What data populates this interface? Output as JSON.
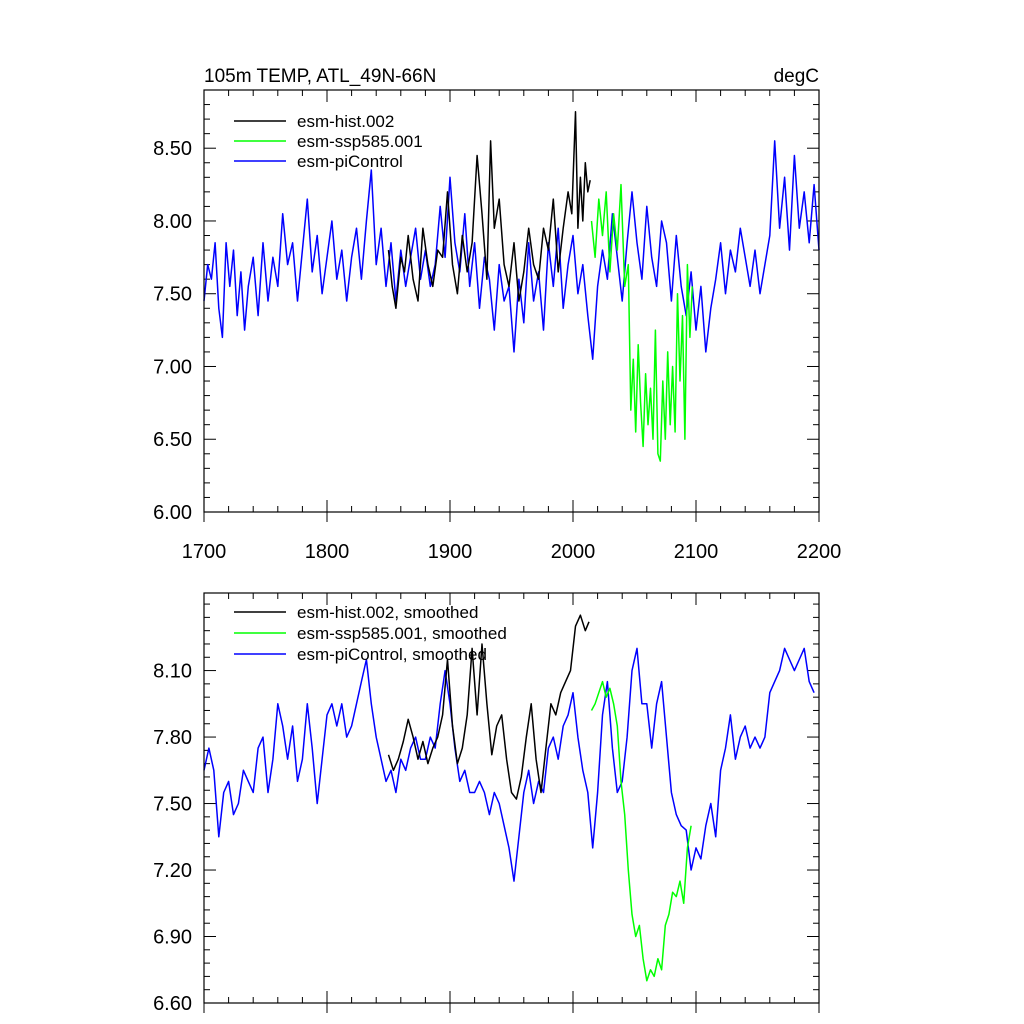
{
  "chart_data": [
    {
      "type": "line",
      "title": "105m TEMP, ATL_49N-66N",
      "units": "degC",
      "xlim": [
        1700,
        2200
      ],
      "ylim": [
        6.0,
        8.9
      ],
      "xticks": [
        1700,
        1800,
        1900,
        2000,
        2100,
        2200
      ],
      "xtick_labels": [
        "1700",
        "1800",
        "1900",
        "2000",
        "2100",
        "2200"
      ],
      "yticks": [
        6.0,
        6.5,
        7.0,
        7.5,
        8.0,
        8.5
      ],
      "ytick_labels": [
        "6.00",
        "6.50",
        "7.00",
        "7.50",
        "8.00",
        "8.50"
      ],
      "legend_position": "top-left",
      "series": [
        {
          "name": "esm-hist.002",
          "color": "#000000",
          "x": [
            1850,
            1853,
            1856,
            1860,
            1863,
            1866,
            1870,
            1874,
            1878,
            1882,
            1886,
            1890,
            1894,
            1898,
            1902,
            1906,
            1910,
            1914,
            1918,
            1922,
            1926,
            1930,
            1933,
            1936,
            1940,
            1944,
            1948,
            1952,
            1956,
            1960,
            1964,
            1968,
            1972,
            1976,
            1980,
            1984,
            1988,
            1992,
            1996,
            1999,
            2002,
            2004,
            2006,
            2008,
            2010,
            2012,
            2014
          ],
          "y": [
            7.8,
            7.55,
            7.4,
            7.75,
            7.65,
            7.9,
            7.6,
            7.45,
            7.95,
            7.7,
            7.55,
            7.8,
            7.75,
            8.2,
            7.7,
            7.5,
            7.9,
            7.65,
            7.85,
            8.45,
            8.05,
            7.6,
            8.55,
            7.95,
            8.15,
            7.7,
            7.55,
            7.85,
            7.45,
            7.65,
            7.95,
            7.7,
            7.6,
            7.95,
            7.8,
            8.15,
            7.65,
            7.95,
            8.2,
            8.05,
            8.75,
            7.95,
            8.3,
            8.0,
            8.4,
            8.2,
            8.28
          ]
        },
        {
          "name": "esm-ssp585.001",
          "color": "#00ff00",
          "x": [
            2015,
            2018,
            2021,
            2024,
            2027,
            2030,
            2033,
            2036,
            2039,
            2042,
            2045,
            2047,
            2049,
            2051,
            2053,
            2055,
            2057,
            2059,
            2061,
            2063,
            2065,
            2067,
            2069,
            2071,
            2073,
            2075,
            2077,
            2079,
            2081,
            2083,
            2085,
            2087,
            2089,
            2091,
            2093,
            2095,
            2097
          ],
          "y": [
            8.0,
            7.75,
            8.15,
            7.9,
            8.2,
            7.65,
            8.05,
            7.8,
            8.25,
            7.55,
            7.7,
            6.7,
            7.05,
            6.55,
            7.15,
            6.75,
            6.45,
            6.95,
            6.6,
            6.85,
            6.5,
            7.25,
            6.4,
            6.35,
            6.9,
            6.5,
            7.1,
            6.6,
            7.0,
            6.55,
            7.5,
            6.9,
            7.35,
            6.5,
            7.7,
            7.2,
            7.55
          ]
        },
        {
          "name": "esm-piControl",
          "color": "#0000ff",
          "x": [
            1700,
            1703,
            1706,
            1709,
            1712,
            1715,
            1718,
            1721,
            1724,
            1727,
            1730,
            1733,
            1736,
            1740,
            1744,
            1748,
            1752,
            1756,
            1760,
            1764,
            1768,
            1772,
            1776,
            1780,
            1784,
            1788,
            1792,
            1796,
            1800,
            1804,
            1808,
            1812,
            1816,
            1820,
            1824,
            1828,
            1832,
            1836,
            1840,
            1844,
            1848,
            1852,
            1856,
            1860,
            1864,
            1868,
            1872,
            1876,
            1880,
            1884,
            1888,
            1892,
            1896,
            1900,
            1904,
            1908,
            1912,
            1916,
            1920,
            1924,
            1928,
            1932,
            1936,
            1940,
            1944,
            1948,
            1952,
            1956,
            1960,
            1964,
            1968,
            1972,
            1976,
            1980,
            1984,
            1988,
            1992,
            1996,
            2000,
            2004,
            2008,
            2012,
            2016,
            2020,
            2024,
            2028,
            2032,
            2036,
            2040,
            2044,
            2048,
            2052,
            2056,
            2060,
            2064,
            2068,
            2072,
            2076,
            2080,
            2084,
            2088,
            2092,
            2096,
            2100,
            2104,
            2108,
            2112,
            2116,
            2120,
            2124,
            2128,
            2132,
            2136,
            2140,
            2144,
            2148,
            2152,
            2156,
            2160,
            2164,
            2168,
            2172,
            2176,
            2180,
            2184,
            2188,
            2192,
            2196,
            2200
          ],
          "y": [
            7.45,
            7.7,
            7.6,
            7.85,
            7.4,
            7.2,
            7.85,
            7.55,
            7.8,
            7.35,
            7.65,
            7.25,
            7.55,
            7.75,
            7.35,
            7.85,
            7.45,
            7.75,
            7.55,
            8.05,
            7.7,
            7.85,
            7.45,
            7.8,
            8.15,
            7.65,
            7.9,
            7.5,
            7.75,
            8.0,
            7.6,
            7.8,
            7.45,
            7.75,
            7.95,
            7.6,
            8.0,
            8.35,
            7.7,
            7.95,
            7.55,
            7.85,
            7.45,
            7.8,
            7.55,
            7.75,
            7.95,
            7.6,
            7.8,
            7.55,
            7.7,
            8.1,
            7.75,
            8.3,
            7.85,
            7.65,
            8.05,
            7.55,
            7.85,
            7.4,
            7.75,
            7.6,
            7.25,
            7.7,
            7.45,
            7.55,
            7.1,
            7.6,
            7.3,
            7.85,
            7.45,
            7.65,
            7.25,
            7.85,
            7.55,
            7.95,
            7.4,
            7.7,
            7.9,
            7.5,
            7.7,
            7.35,
            7.05,
            7.55,
            7.8,
            7.6,
            8.05,
            7.75,
            7.45,
            7.85,
            8.2,
            7.85,
            7.6,
            8.1,
            7.75,
            7.55,
            8.0,
            7.85,
            7.45,
            7.9,
            7.55,
            7.35,
            7.65,
            7.25,
            7.55,
            7.1,
            7.4,
            7.6,
            7.85,
            7.5,
            7.8,
            7.65,
            7.95,
            7.75,
            7.55,
            7.8,
            7.5,
            7.7,
            7.9,
            8.55,
            7.95,
            8.3,
            7.8,
            8.45,
            7.95,
            8.2,
            7.85,
            8.25,
            7.8
          ]
        }
      ]
    },
    {
      "type": "line",
      "title": "",
      "xlim": [
        1700,
        2200
      ],
      "ylim": [
        6.6,
        8.45
      ],
      "xticks": [
        1700,
        1800,
        1900,
        2000,
        2100,
        2200
      ],
      "yticks": [
        6.6,
        6.9,
        7.2,
        7.5,
        7.8,
        8.1
      ],
      "ytick_labels": [
        "6.60",
        "6.90",
        "7.20",
        "7.50",
        "7.80",
        "8.10"
      ],
      "legend_position": "top-left",
      "series": [
        {
          "name": "esm-hist.002, smoothed",
          "color": "#000000",
          "x": [
            1850,
            1854,
            1858,
            1862,
            1866,
            1870,
            1874,
            1878,
            1882,
            1886,
            1890,
            1894,
            1898,
            1902,
            1906,
            1910,
            1914,
            1918,
            1922,
            1926,
            1930,
            1934,
            1938,
            1942,
            1946,
            1950,
            1954,
            1958,
            1962,
            1966,
            1970,
            1974,
            1978,
            1982,
            1986,
            1990,
            1994,
            1998,
            2002,
            2006,
            2010,
            2013
          ],
          "y": [
            7.72,
            7.65,
            7.7,
            7.78,
            7.88,
            7.8,
            7.7,
            7.78,
            7.68,
            7.75,
            7.8,
            7.9,
            8.15,
            7.85,
            7.68,
            7.75,
            7.9,
            8.2,
            7.9,
            8.22,
            7.95,
            7.72,
            7.85,
            7.9,
            7.7,
            7.55,
            7.52,
            7.62,
            7.8,
            7.95,
            7.7,
            7.55,
            7.75,
            7.95,
            7.9,
            8.0,
            8.05,
            8.1,
            8.3,
            8.35,
            8.28,
            8.32
          ]
        },
        {
          "name": "esm-ssp585.001, smoothed",
          "color": "#00ff00",
          "x": [
            2015,
            2018,
            2021,
            2024,
            2027,
            2030,
            2033,
            2036,
            2039,
            2042,
            2045,
            2048,
            2051,
            2054,
            2057,
            2060,
            2063,
            2066,
            2069,
            2072,
            2075,
            2078,
            2081,
            2084,
            2087,
            2090,
            2093,
            2096
          ],
          "y": [
            7.92,
            7.95,
            8.0,
            8.05,
            7.98,
            8.02,
            7.95,
            7.85,
            7.6,
            7.45,
            7.2,
            7.0,
            6.9,
            6.95,
            6.8,
            6.7,
            6.75,
            6.72,
            6.8,
            6.75,
            6.95,
            7.0,
            7.1,
            7.08,
            7.15,
            7.05,
            7.3,
            7.4
          ]
        },
        {
          "name": "esm-piControl, smoothed",
          "color": "#0000ff",
          "x": [
            1700,
            1704,
            1708,
            1712,
            1716,
            1720,
            1724,
            1728,
            1732,
            1736,
            1740,
            1744,
            1748,
            1752,
            1756,
            1760,
            1764,
            1768,
            1772,
            1776,
            1780,
            1784,
            1788,
            1792,
            1796,
            1800,
            1804,
            1808,
            1812,
            1816,
            1820,
            1824,
            1828,
            1832,
            1836,
            1840,
            1844,
            1848,
            1852,
            1856,
            1860,
            1864,
            1868,
            1872,
            1876,
            1880,
            1884,
            1888,
            1892,
            1896,
            1900,
            1904,
            1908,
            1912,
            1916,
            1920,
            1924,
            1928,
            1932,
            1936,
            1940,
            1944,
            1948,
            1952,
            1956,
            1960,
            1964,
            1968,
            1972,
            1976,
            1980,
            1984,
            1988,
            1992,
            1996,
            2000,
            2004,
            2008,
            2012,
            2016,
            2020,
            2024,
            2028,
            2032,
            2036,
            2040,
            2044,
            2048,
            2052,
            2056,
            2060,
            2064,
            2068,
            2072,
            2076,
            2080,
            2084,
            2088,
            2092,
            2096,
            2100,
            2104,
            2108,
            2112,
            2116,
            2120,
            2124,
            2128,
            2132,
            2136,
            2140,
            2144,
            2148,
            2152,
            2156,
            2160,
            2164,
            2168,
            2172,
            2176,
            2180,
            2184,
            2188,
            2192,
            2196
          ],
          "y": [
            7.65,
            7.75,
            7.65,
            7.35,
            7.55,
            7.6,
            7.45,
            7.5,
            7.65,
            7.6,
            7.55,
            7.75,
            7.8,
            7.55,
            7.7,
            7.95,
            7.85,
            7.7,
            7.85,
            7.6,
            7.7,
            7.95,
            7.75,
            7.5,
            7.7,
            7.9,
            7.95,
            7.85,
            7.95,
            7.8,
            7.85,
            7.95,
            8.05,
            8.15,
            7.95,
            7.8,
            7.7,
            7.6,
            7.65,
            7.55,
            7.7,
            7.65,
            7.75,
            7.8,
            7.7,
            7.7,
            7.8,
            7.75,
            7.95,
            8.1,
            7.95,
            7.75,
            7.6,
            7.65,
            7.55,
            7.55,
            7.6,
            7.55,
            7.45,
            7.55,
            7.5,
            7.4,
            7.3,
            7.15,
            7.35,
            7.55,
            7.65,
            7.5,
            7.6,
            7.55,
            7.75,
            7.8,
            7.7,
            7.85,
            7.9,
            8.0,
            7.8,
            7.65,
            7.55,
            7.3,
            7.55,
            7.9,
            8.05,
            7.75,
            7.55,
            7.6,
            7.8,
            8.1,
            8.2,
            7.95,
            7.95,
            7.75,
            7.95,
            8.05,
            7.8,
            7.55,
            7.45,
            7.4,
            7.38,
            7.2,
            7.3,
            7.25,
            7.4,
            7.5,
            7.35,
            7.65,
            7.75,
            7.9,
            7.7,
            7.8,
            7.85,
            7.75,
            7.8,
            7.75,
            7.8,
            8.0,
            8.05,
            8.1,
            8.2,
            8.15,
            8.1,
            8.15,
            8.2,
            8.05,
            8.0
          ]
        }
      ]
    }
  ]
}
